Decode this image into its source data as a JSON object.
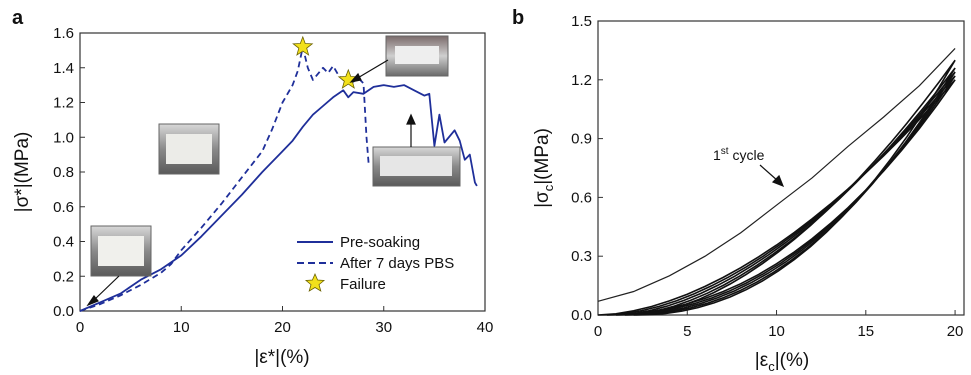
{
  "panel_labels": [
    "a",
    "b"
  ],
  "chart_data": [
    {
      "type": "line",
      "xlabel": "|ε*|(%)",
      "ylabel": "|σ*|(MPa)",
      "xlim": [
        0,
        40
      ],
      "ylim": [
        0,
        1.6
      ],
      "xticks": [
        "0",
        "10",
        "20",
        "30",
        "40"
      ],
      "yticks": [
        "0.0",
        "0.2",
        "0.4",
        "0.6",
        "0.8",
        "1.0",
        "1.2",
        "1.4",
        "1.6"
      ],
      "grid": false,
      "legend_position": "bottom-right",
      "legend": [
        "Pre-soaking",
        "After 7 days PBS",
        "Failure"
      ],
      "series": [
        {
          "name": "Pre-soaking",
          "style": "solid",
          "color": "#1f2f9a",
          "x": [
            0,
            2,
            4,
            6,
            8,
            10,
            12,
            14,
            16,
            18,
            20,
            21,
            22,
            23,
            24,
            25,
            26,
            26.5,
            27,
            28,
            29,
            30,
            31,
            32,
            33,
            34,
            34.5,
            35,
            35.5,
            36,
            37,
            37.5,
            38,
            38.5,
            39,
            39.2
          ],
          "y": [
            0,
            0.05,
            0.1,
            0.18,
            0.24,
            0.32,
            0.43,
            0.55,
            0.67,
            0.8,
            0.92,
            0.98,
            1.06,
            1.13,
            1.18,
            1.23,
            1.27,
            1.23,
            1.26,
            1.25,
            1.29,
            1.3,
            1.29,
            1.3,
            1.27,
            1.24,
            1.25,
            0.95,
            1.13,
            0.97,
            1.04,
            0.98,
            0.87,
            0.9,
            0.74,
            0.72
          ]
        },
        {
          "name": "After 7 days PBS",
          "style": "dashed",
          "color": "#1f2f9a",
          "x": [
            0,
            2,
            4,
            6,
            8,
            9,
            10,
            12,
            14,
            16,
            18,
            19,
            20,
            21,
            21.5,
            22,
            22.5,
            23,
            24,
            24.5,
            25,
            25.5,
            26,
            26.5,
            27,
            27.5,
            28,
            28.3,
            28.5
          ],
          "y": [
            0,
            0.04,
            0.09,
            0.15,
            0.22,
            0.27,
            0.35,
            0.48,
            0.62,
            0.77,
            0.92,
            1.05,
            1.2,
            1.3,
            1.38,
            1.52,
            1.4,
            1.33,
            1.4,
            1.37,
            1.41,
            1.36,
            1.33,
            1.37,
            1.32,
            1.34,
            1.31,
            1.0,
            0.85
          ]
        }
      ],
      "markers": [
        {
          "name": "Failure",
          "x": 22,
          "y": 1.52
        },
        {
          "name": "Failure",
          "x": 26.5,
          "y": 1.33
        }
      ]
    },
    {
      "type": "line",
      "xlabel": "|εc|(%)",
      "ylabel": "|σc|(MPa)",
      "xlim": [
        0,
        20.5
      ],
      "ylim": [
        0,
        1.5
      ],
      "xticks": [
        "0",
        "5",
        "10",
        "15",
        "20"
      ],
      "yticks": [
        "0.0",
        "0.3",
        "0.6",
        "0.9",
        "1.2",
        "1.5"
      ],
      "grid": false,
      "annotations": [
        {
          "text": "1st cycle",
          "main": "1",
          "sup": "st",
          "rest": " cycle"
        }
      ],
      "series": [
        {
          "name": "1st cycle",
          "color": "#222222",
          "x": [
            0,
            2,
            4,
            6,
            8,
            10,
            12,
            14,
            16,
            18,
            20
          ],
          "y": [
            0.07,
            0.12,
            0.2,
            0.3,
            0.42,
            0.56,
            0.7,
            0.86,
            1.01,
            1.17,
            1.36
          ]
        }
      ],
      "cycle_band": {
        "x_start": [
          0,
          0.5,
          1.0,
          1.5,
          2.0
        ],
        "x_peak": 20,
        "y_peak": [
          1.2,
          1.22,
          1.24,
          1.26,
          1.3
        ]
      }
    }
  ]
}
